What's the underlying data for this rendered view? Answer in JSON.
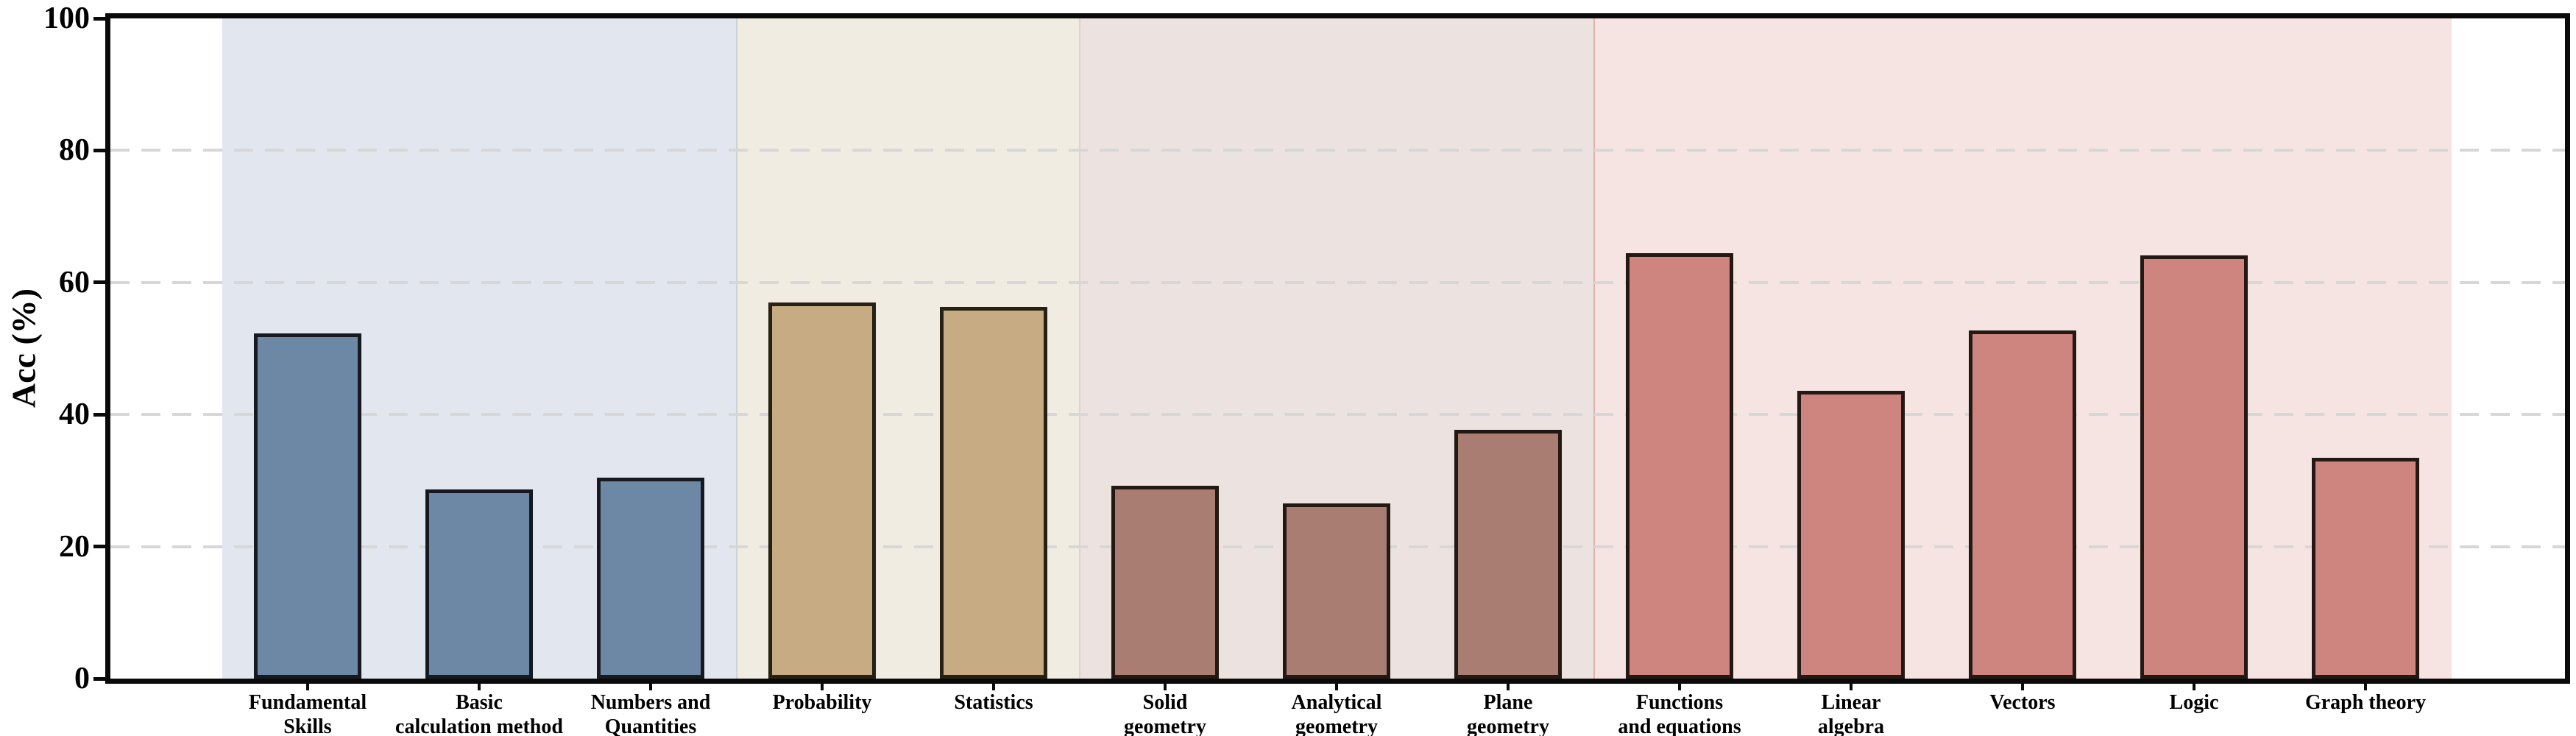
{
  "chart_data": {
    "type": "bar",
    "title": "",
    "ylabel": "Acc (%)",
    "xlabel": "",
    "ylim": [
      0,
      100
    ],
    "yticks": [
      0,
      20,
      40,
      60,
      80,
      100
    ],
    "grid": "horizontal dashed gridlines at 20, 40, 60, 80",
    "legend": "none",
    "categories": [
      "Fundamental Skills",
      "Basic calculation method",
      "Numbers and Quantities",
      "Probability",
      "Statistics",
      "Solid geometry",
      "Analytical geometry",
      "Plane geometry",
      "Functions and equations",
      "Linear algebra",
      "Vectors",
      "Logic",
      "Graph theory"
    ],
    "category_label_lines": [
      [
        "Fundamental",
        "Skills"
      ],
      [
        "Basic",
        "calculation method"
      ],
      [
        "Numbers and",
        "Quantities"
      ],
      [
        "Probability"
      ],
      [
        "Statistics"
      ],
      [
        "Solid",
        "geometry"
      ],
      [
        "Analytical",
        "geometry"
      ],
      [
        "Plane",
        "geometry"
      ],
      [
        "Functions",
        "and equations"
      ],
      [
        "Linear",
        "algebra"
      ],
      [
        "Vectors"
      ],
      [
        "Logic"
      ],
      [
        "Graph theory"
      ]
    ],
    "values": [
      52.3,
      28.6,
      30.4,
      57.0,
      56.3,
      29.2,
      26.5,
      37.7,
      64.4,
      43.6,
      52.7,
      64.1,
      33.4
    ],
    "bar_group_index": [
      0,
      0,
      0,
      1,
      1,
      2,
      2,
      2,
      3,
      3,
      3,
      3,
      3
    ],
    "groups": [
      {
        "bar_fill": "#6c88a5",
        "bar_edge": "#161a20",
        "band_fill": "#e2e7ef",
        "first_index": 0,
        "last_index": 2
      },
      {
        "bar_fill": "#c7ab82",
        "bar_edge": "#262114",
        "band_fill": "#f1ece1",
        "first_index": 3,
        "last_index": 4
      },
      {
        "bar_fill": "#aa7d72",
        "bar_edge": "#241813",
        "band_fill": "#ece3e0",
        "first_index": 5,
        "last_index": 7
      },
      {
        "bar_fill": "#ce847f",
        "bar_edge": "#241813",
        "band_fill": "#f6e4e2",
        "first_index": 8,
        "last_index": 12
      }
    ],
    "band_seam_colors": [
      "#ccd2dc",
      "#e2cfc8",
      "#dfb3ac"
    ],
    "colors": {
      "axis_spine": "#0a0a0a",
      "gridline": "#d7d7d7",
      "text": "#000000",
      "plot_background": "#ffffff"
    },
    "ytick_labels": [
      "0",
      "20",
      "40",
      "60",
      "80",
      "100"
    ]
  }
}
